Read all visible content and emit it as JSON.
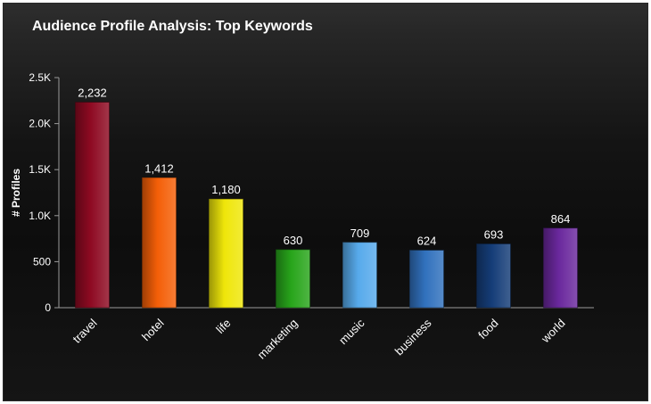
{
  "chart_data": {
    "type": "bar",
    "title": "Audience Profile Analysis: Top Keywords",
    "xlabel": "",
    "ylabel": "# Profiles",
    "ylim": [
      0,
      2500
    ],
    "yticks": [
      0,
      500,
      1000,
      1500,
      2000,
      2500
    ],
    "ytick_labels": [
      "0",
      "500",
      "1.0K",
      "1.5K",
      "2.0K",
      "2.5K"
    ],
    "categories": [
      "travel",
      "hotel",
      "life",
      "marketing",
      "music",
      "business",
      "food",
      "world"
    ],
    "values": [
      2232,
      1412,
      1180,
      630,
      709,
      624,
      693,
      864
    ],
    "value_labels": [
      "2,232",
      "1,412",
      "1,180",
      "630",
      "709",
      "624",
      "693",
      "864"
    ],
    "colors": [
      "#8e0a22",
      "#f45f08",
      "#efe60a",
      "#28a51b",
      "#57aaeb",
      "#3171bd",
      "#153d78",
      "#6a289d"
    ],
    "grid": false,
    "legend": "none"
  }
}
